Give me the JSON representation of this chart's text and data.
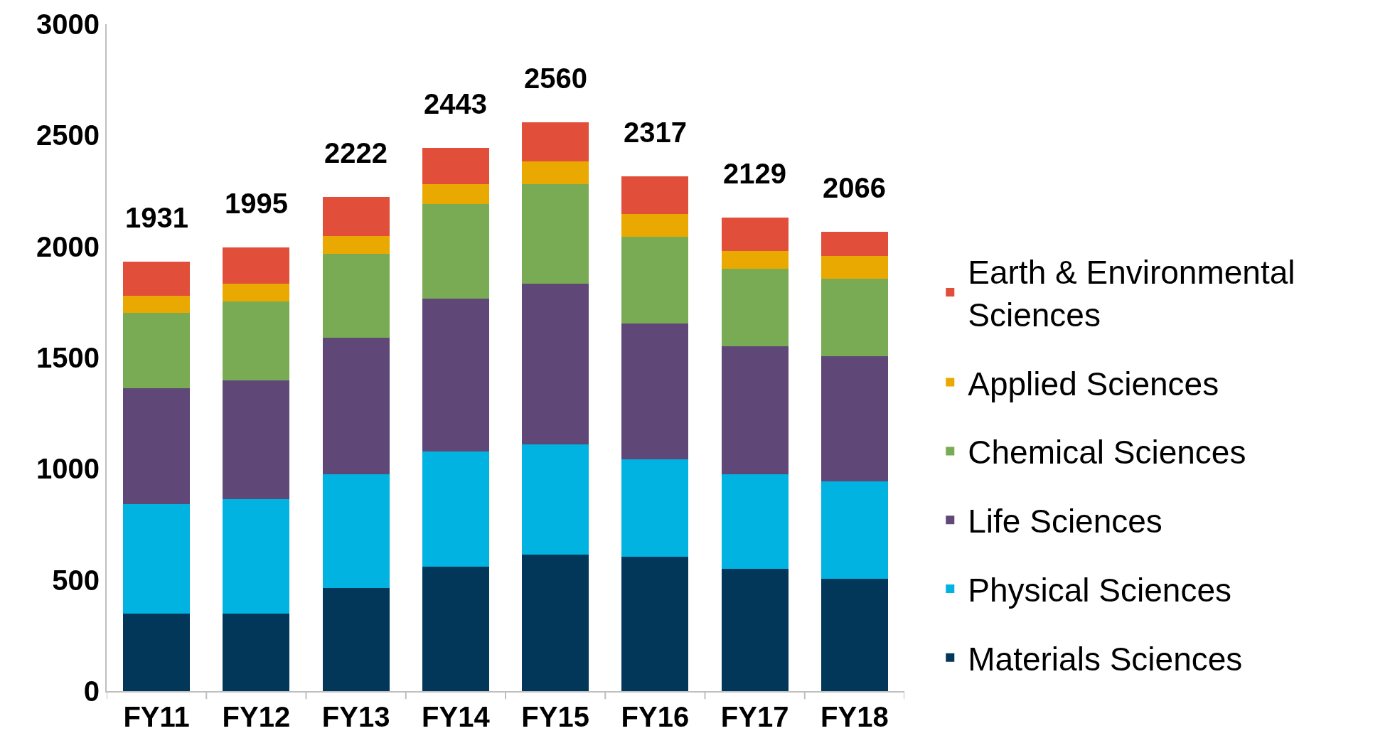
{
  "chart_data": {
    "type": "bar",
    "stacked": true,
    "categories": [
      "FY11",
      "FY12",
      "FY13",
      "FY14",
      "FY15",
      "FY16",
      "FY17",
      "FY18"
    ],
    "series": [
      {
        "name": "Materials Sciences",
        "color": "#03375a",
        "values": [
          350,
          350,
          464,
          559,
          615,
          604,
          550,
          505
        ]
      },
      {
        "name": "Physical Sciences",
        "color": "#00b3e1",
        "values": [
          492,
          513,
          511,
          520,
          496,
          438,
          425,
          438
        ]
      },
      {
        "name": "Life Sciences",
        "color": "#5f4778",
        "values": [
          520,
          535,
          613,
          688,
          721,
          611,
          577,
          565
        ]
      },
      {
        "name": "Chemical Sciences",
        "color": "#78ab53",
        "values": [
          338,
          356,
          378,
          423,
          447,
          391,
          347,
          346
        ]
      },
      {
        "name": "Applied Sciences",
        "color": "#eaa900",
        "values": [
          78,
          80,
          80,
          91,
          103,
          103,
          80,
          103
        ]
      },
      {
        "name": "Earth & Environmental Sciences",
        "color": "#e14f3a",
        "values": [
          153,
          161,
          176,
          162,
          178,
          170,
          150,
          109
        ]
      }
    ],
    "totals": [
      "1931",
      "1995",
      "2222",
      "2443",
      "2560",
      "2317",
      "2129",
      "2066"
    ],
    "ylim": [
      0,
      3000
    ],
    "yticks": [
      0,
      500,
      1000,
      1500,
      2000,
      2500,
      3000
    ],
    "legend": "right"
  }
}
